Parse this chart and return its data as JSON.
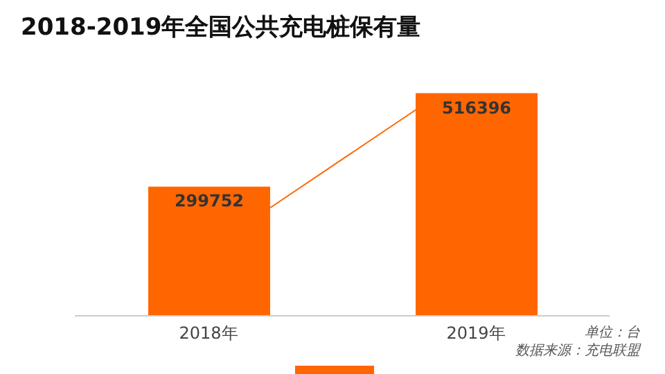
{
  "chart_data": {
    "type": "bar",
    "title": "2018-2019年全国公共充电桩保有量",
    "categories": [
      "2018年",
      "2019年"
    ],
    "values": [
      299752,
      516396
    ],
    "color": "#ff6600",
    "data_labels": true,
    "annotations": [
      "单位：台",
      "数据来源：充电联盟"
    ]
  }
}
